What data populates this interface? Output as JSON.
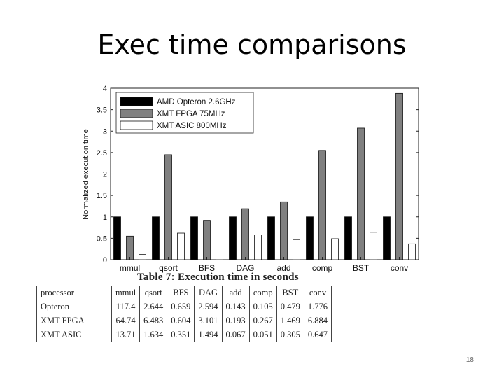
{
  "slide": {
    "title": "Exec time comparisons",
    "page_number": "18"
  },
  "chart_data": {
    "type": "bar",
    "title": "",
    "xlabel": "",
    "ylabel": "Normalized execution time",
    "ylim": [
      0,
      4
    ],
    "yticks": [
      "0",
      "0.5",
      "1",
      "1.5",
      "2",
      "2.5",
      "3",
      "3.5",
      "4"
    ],
    "ytick_values": [
      0,
      0.5,
      1,
      1.5,
      2,
      2.5,
      3,
      3.5,
      4
    ],
    "categories": [
      "mmul",
      "qsort",
      "BFS",
      "DAG",
      "add",
      "comp",
      "BST",
      "conv"
    ],
    "legend_position": "top-left",
    "series": [
      {
        "name": "AMD Opteron 2.6GHz",
        "color": "#000000",
        "values": [
          1,
          1,
          1,
          1,
          1,
          1,
          1,
          1
        ]
      },
      {
        "name": "XMT FPGA 75MHz",
        "color": "#808080",
        "values": [
          0.55,
          2.45,
          0.92,
          1.19,
          1.35,
          2.55,
          3.07,
          3.88
        ]
      },
      {
        "name": "XMT ASIC 800MHz",
        "color": "#ffffff",
        "values": [
          0.12,
          0.62,
          0.53,
          0.58,
          0.47,
          0.49,
          0.64,
          0.37
        ]
      }
    ]
  },
  "table": {
    "caption": "Table 7: Execution time in seconds",
    "headers": [
      "processor",
      "mmul",
      "qsort",
      "BFS",
      "DAG",
      "add",
      "comp",
      "BST",
      "conv"
    ],
    "rows": [
      [
        "Opteron",
        "117.4",
        "2.644",
        "0.659",
        "2.594",
        "0.143",
        "0.105",
        "0.479",
        "1.776"
      ],
      [
        "XMT FPGA",
        "64.74",
        "6.483",
        "0.604",
        "3.101",
        "0.193",
        "0.267",
        "1.469",
        "6.884"
      ],
      [
        "XMT ASIC",
        "13.71",
        "1.634",
        "0.351",
        "1.494",
        "0.067",
        "0.051",
        "0.305",
        "0.647"
      ]
    ]
  }
}
